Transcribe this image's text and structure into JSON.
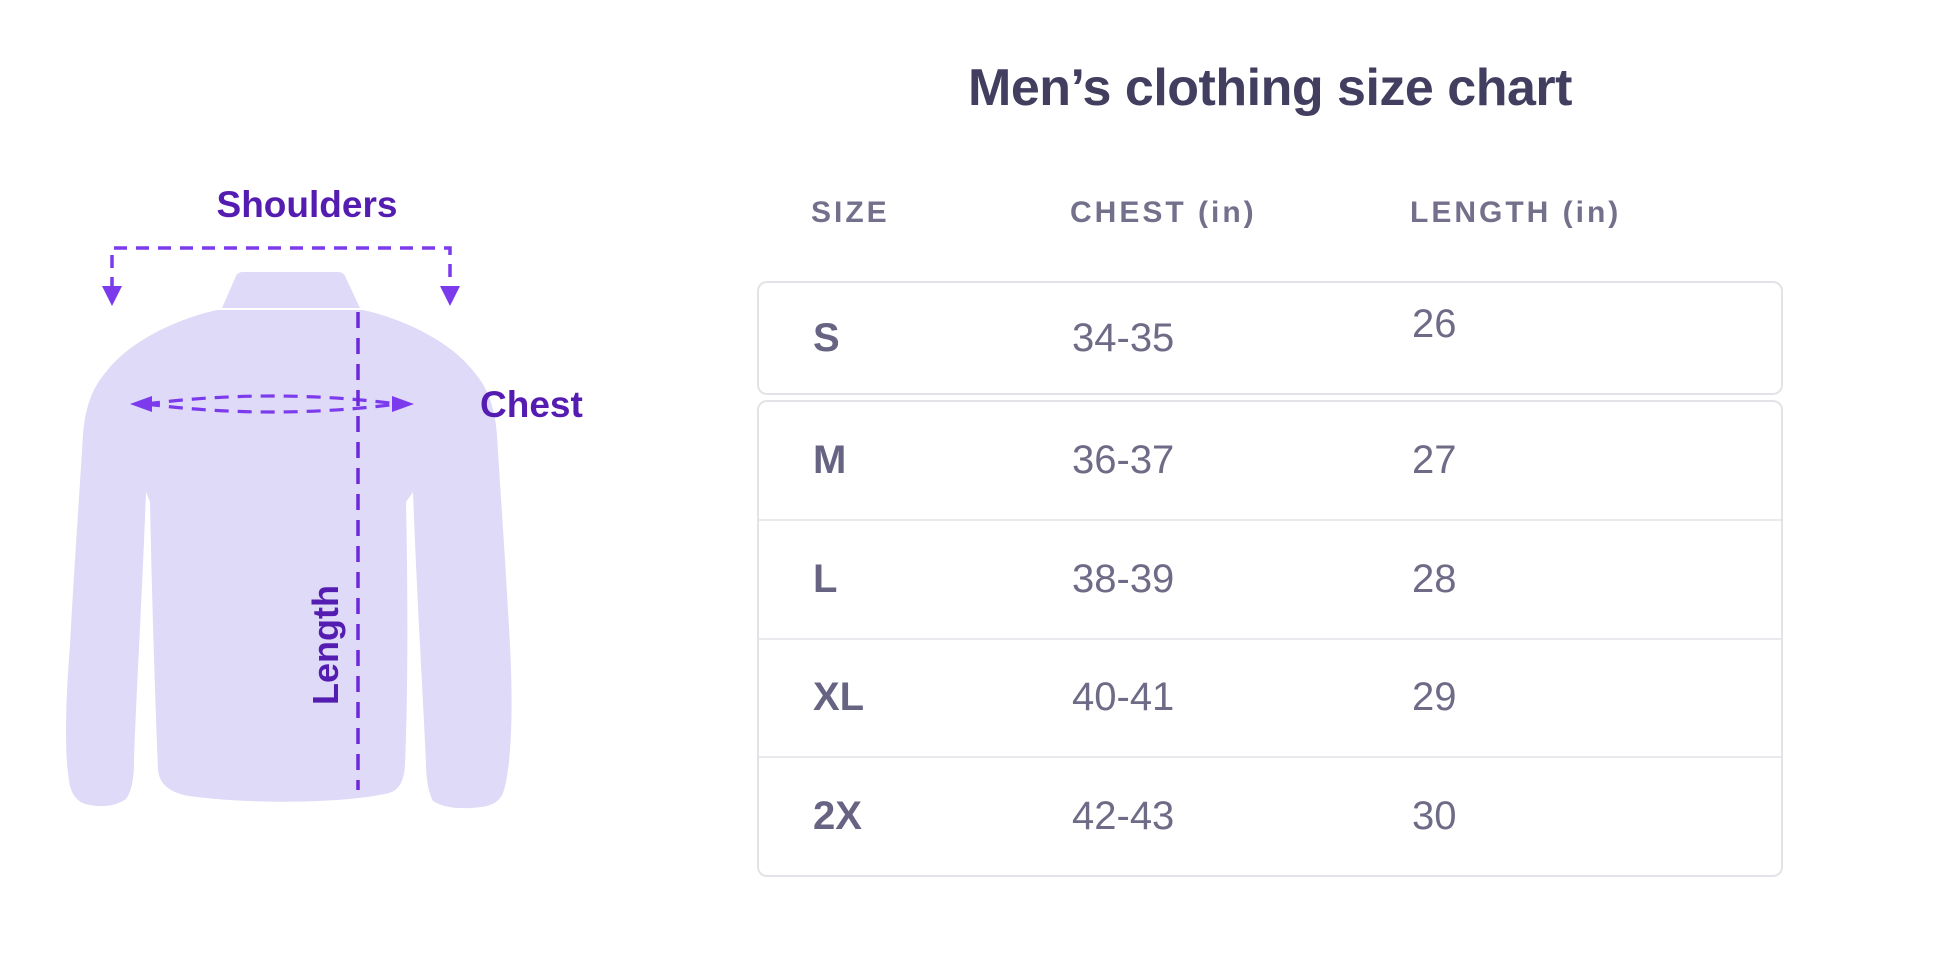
{
  "illustration": {
    "shoulders_label": "Shoulders",
    "chest_label": "Chest",
    "length_label": "Length"
  },
  "colors": {
    "label_purple": "#541cb0",
    "dash_purple": "#7c3aed",
    "length_line_purple": "#6d28d9",
    "shirt_fill": "#dedaf7",
    "title_text": "#413e5f",
    "table_text": "#6e6b87",
    "card_border": "#e3e3e7"
  },
  "chart_data": {
    "type": "table",
    "title": "Men’s clothing size chart",
    "columns": [
      "SIZE",
      "CHEST (in)",
      "LENGTH (in)"
    ],
    "rows": [
      {
        "size": "S",
        "chest": "34-35",
        "length": "26"
      },
      {
        "size": "M",
        "chest": "36-37",
        "length": "27"
      },
      {
        "size": "L",
        "chest": "38-39",
        "length": "28"
      },
      {
        "size": "XL",
        "chest": "40-41",
        "length": "29"
      },
      {
        "size": "2X",
        "chest": "42-43",
        "length": "30"
      }
    ]
  }
}
